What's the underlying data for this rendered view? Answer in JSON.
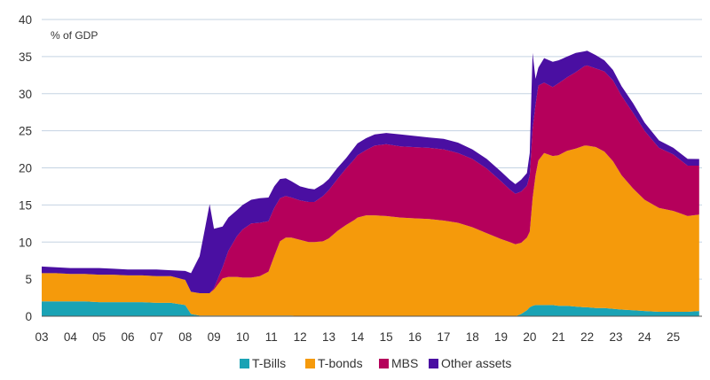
{
  "chart_data": {
    "type": "area",
    "stacked": true,
    "unit_label": "% of GDP",
    "xlabel": "",
    "ylabel": "% of GDP",
    "ylim": [
      0,
      40
    ],
    "yticks": [
      0,
      5,
      10,
      15,
      20,
      25,
      30,
      35,
      40
    ],
    "xlim": [
      2003.0,
      2026.0
    ],
    "xtick_labels": [
      "03",
      "04",
      "05",
      "06",
      "07",
      "08",
      "09",
      "10",
      "11",
      "12",
      "13",
      "14",
      "15",
      "16",
      "17",
      "18",
      "19",
      "20",
      "21",
      "22",
      "23",
      "24",
      "25"
    ],
    "grid": "horizontal",
    "legend_position": "bottom-center",
    "x": [
      2003.0,
      2003.5,
      2004.0,
      2004.5,
      2005.0,
      2005.5,
      2006.0,
      2006.5,
      2007.0,
      2007.5,
      2008.0,
      2008.2,
      2008.5,
      2008.7,
      2008.85,
      2009.0,
      2009.3,
      2009.5,
      2009.8,
      2010.0,
      2010.3,
      2010.6,
      2010.9,
      2011.1,
      2011.3,
      2011.5,
      2011.7,
      2012.0,
      2012.3,
      2012.5,
      2012.8,
      2013.0,
      2013.3,
      2013.6,
      2013.9,
      2014.0,
      2014.3,
      2014.6,
      2015.0,
      2015.5,
      2016.0,
      2016.5,
      2017.0,
      2017.5,
      2018.0,
      2018.5,
      2019.0,
      2019.3,
      2019.5,
      2019.7,
      2019.9,
      2020.0,
      2020.1,
      2020.2,
      2020.3,
      2020.5,
      2020.8,
      2021.0,
      2021.3,
      2021.6,
      2021.9,
      2022.0,
      2022.3,
      2022.6,
      2022.9,
      2023.2,
      2023.6,
      2024.0,
      2024.5,
      2025.0,
      2025.5,
      2025.9
    ],
    "series": [
      {
        "name": "T-Bills",
        "color": "#1aa3b5",
        "values": [
          2.0,
          2.0,
          2.0,
          2.0,
          1.9,
          1.9,
          1.9,
          1.9,
          1.8,
          1.8,
          1.5,
          0.3,
          0.1,
          0.1,
          0.1,
          0.1,
          0.1,
          0.1,
          0.1,
          0.1,
          0.1,
          0.1,
          0.1,
          0.1,
          0.1,
          0.1,
          0.1,
          0.0,
          0.0,
          0.0,
          0.0,
          0.0,
          0.0,
          0.0,
          0.0,
          0.0,
          0.0,
          0.0,
          0.0,
          0.0,
          0.0,
          0.0,
          0.0,
          0.0,
          0.0,
          0.0,
          0.0,
          0.0,
          0.0,
          0.3,
          0.8,
          1.2,
          1.4,
          1.5,
          1.5,
          1.5,
          1.5,
          1.4,
          1.4,
          1.3,
          1.2,
          1.2,
          1.1,
          1.1,
          1.0,
          0.9,
          0.8,
          0.7,
          0.6,
          0.6,
          0.6,
          0.7
        ]
      },
      {
        "name": "T-bonds",
        "color": "#f59a0b",
        "values": [
          3.8,
          3.8,
          3.7,
          3.7,
          3.7,
          3.7,
          3.6,
          3.6,
          3.6,
          3.6,
          3.4,
          3.0,
          3.0,
          3.0,
          3.0,
          3.5,
          5.0,
          5.2,
          5.2,
          5.1,
          5.1,
          5.3,
          5.9,
          8.0,
          10.0,
          10.5,
          10.5,
          10.3,
          10.0,
          10.0,
          10.1,
          10.5,
          11.5,
          12.3,
          13.0,
          13.3,
          13.6,
          13.6,
          13.5,
          13.3,
          13.2,
          13.1,
          12.9,
          12.6,
          12.0,
          11.2,
          10.4,
          10.0,
          9.7,
          9.6,
          9.8,
          10.2,
          14.5,
          17.5,
          19.5,
          20.5,
          20.1,
          20.3,
          20.9,
          21.3,
          21.8,
          21.8,
          21.7,
          21.1,
          19.9,
          18.1,
          16.4,
          15.0,
          14.0,
          13.6,
          12.9,
          13.0
        ]
      },
      {
        "name": "MBS",
        "color": "#b5005b",
        "values": [
          0.0,
          0.0,
          0.0,
          0.0,
          0.0,
          0.0,
          0.0,
          0.0,
          0.0,
          0.0,
          0.0,
          0.0,
          0.0,
          0.0,
          0.0,
          0.2,
          1.5,
          3.5,
          5.5,
          6.5,
          7.3,
          7.2,
          6.8,
          6.5,
          5.8,
          5.6,
          5.4,
          5.3,
          5.4,
          5.4,
          6.1,
          6.5,
          7.0,
          7.6,
          8.2,
          8.4,
          8.8,
          9.4,
          9.7,
          9.6,
          9.6,
          9.6,
          9.6,
          9.4,
          9.2,
          8.7,
          7.8,
          7.1,
          6.8,
          6.9,
          7.0,
          7.6,
          9.4,
          9.5,
          10.1,
          9.5,
          9.3,
          9.7,
          9.9,
          10.3,
          10.7,
          10.8,
          10.6,
          10.8,
          10.9,
          10.7,
          10.2,
          9.3,
          8.1,
          7.6,
          6.8,
          6.6
        ]
      },
      {
        "name": "Other assets",
        "color": "#4a0fa2",
        "values": [
          0.9,
          0.8,
          0.8,
          0.8,
          0.9,
          0.8,
          0.8,
          0.8,
          0.9,
          0.8,
          1.2,
          2.5,
          5.0,
          9.0,
          12.0,
          8.0,
          5.5,
          4.5,
          3.5,
          3.3,
          3.2,
          3.3,
          3.2,
          2.9,
          2.6,
          2.4,
          2.2,
          1.9,
          1.8,
          1.7,
          1.6,
          1.5,
          1.5,
          1.4,
          1.6,
          1.6,
          1.6,
          1.5,
          1.5,
          1.6,
          1.5,
          1.4,
          1.4,
          1.4,
          1.3,
          1.3,
          1.3,
          1.3,
          1.3,
          1.6,
          1.7,
          3.0,
          10.2,
          3.5,
          2.4,
          3.3,
          3.4,
          3.1,
          2.8,
          2.6,
          2.0,
          2.0,
          1.8,
          1.5,
          1.4,
          1.3,
          1.3,
          1.1,
          1.0,
          0.9,
          0.9,
          0.9
        ]
      }
    ]
  }
}
